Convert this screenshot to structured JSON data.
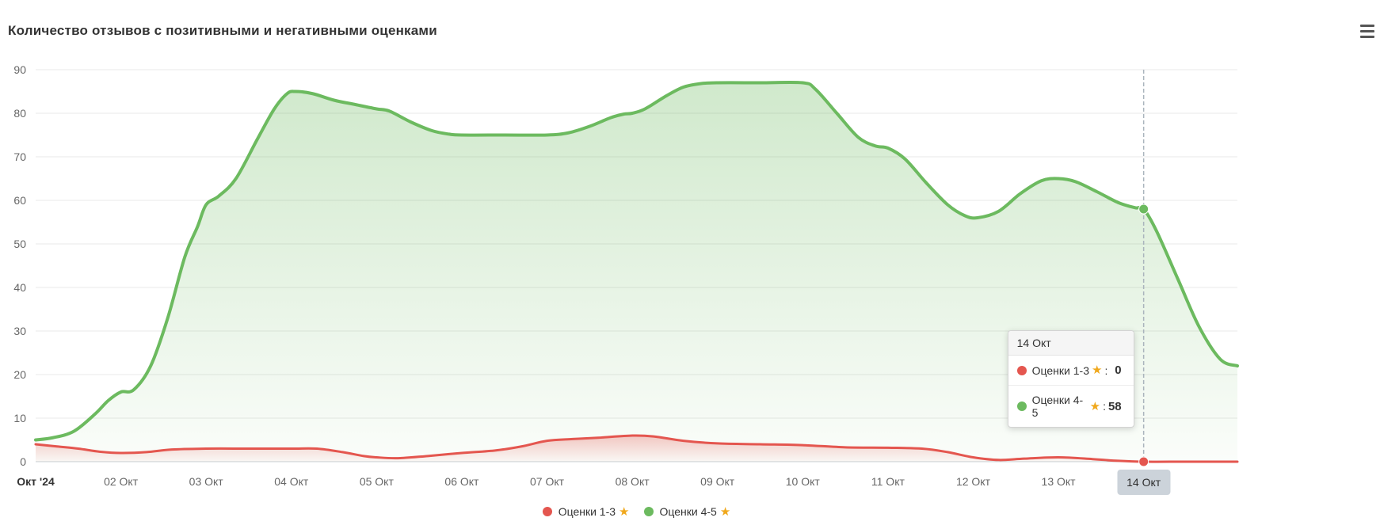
{
  "chart": {
    "title": "Количество отзывов с позитивными и негативными оценками"
  },
  "icons": {
    "star": "★"
  },
  "tooltip": {
    "header": "14 Окт",
    "rows": [
      {
        "label": "Оценки 1-3",
        "separator": ":",
        "value": "0",
        "color": "#e4564f"
      },
      {
        "label": "Оценки 4-5",
        "separator": ":",
        "value": "58",
        "color": "#6cba5f"
      }
    ]
  },
  "crosshair": {
    "label": "14 Окт"
  },
  "legend": {
    "items": [
      {
        "label": "Оценки 1-3",
        "color": "#e4564f"
      },
      {
        "label": "Оценки 4-5",
        "color": "#6cba5f"
      }
    ]
  },
  "chart_data": {
    "type": "area",
    "title": "Количество отзывов с позитивными и негативными оценками",
    "x_tick_labels": [
      "Окт '24",
      "02 Окт",
      "03 Окт",
      "04 Окт",
      "05 Окт",
      "06 Окт",
      "07 Окт",
      "08 Окт",
      "09 Окт",
      "10 Окт",
      "11 Окт",
      "12 Окт",
      "13 Окт",
      "14 Окт"
    ],
    "x_unit": "days since 01 Окт '24",
    "xlim": [
      0,
      14.1
    ],
    "ylim": [
      0,
      90
    ],
    "ytick_step": 10,
    "grid": "horizontal",
    "legend_position": "bottom-center",
    "series": [
      {
        "name": "Оценки 1-3",
        "slug": "negative",
        "color": "#e4564f",
        "line_width": 3,
        "points": [
          [
            0,
            4
          ],
          [
            0.25,
            3.5
          ],
          [
            0.5,
            3
          ],
          [
            0.75,
            2.3
          ],
          [
            1,
            2
          ],
          [
            1.3,
            2.2
          ],
          [
            1.6,
            2.8
          ],
          [
            2,
            3
          ],
          [
            2.5,
            3
          ],
          [
            3,
            3
          ],
          [
            3.3,
            3
          ],
          [
            3.6,
            2.2
          ],
          [
            3.85,
            1.3
          ],
          [
            4,
            1
          ],
          [
            4.25,
            0.8
          ],
          [
            4.6,
            1.3
          ],
          [
            5,
            2
          ],
          [
            5.4,
            2.6
          ],
          [
            5.7,
            3.5
          ],
          [
            6,
            4.8
          ],
          [
            6.3,
            5.2
          ],
          [
            6.6,
            5.5
          ],
          [
            7,
            6
          ],
          [
            7.25,
            5.8
          ],
          [
            7.6,
            4.8
          ],
          [
            8,
            4.2
          ],
          [
            8.5,
            4
          ],
          [
            9,
            3.8
          ],
          [
            9.5,
            3.3
          ],
          [
            10,
            3.2
          ],
          [
            10.4,
            3
          ],
          [
            10.7,
            2.2
          ],
          [
            11,
            1
          ],
          [
            11.3,
            0.4
          ],
          [
            11.6,
            0.7
          ],
          [
            12,
            1
          ],
          [
            12.4,
            0.6
          ],
          [
            12.7,
            0.2
          ],
          [
            13,
            0
          ],
          [
            13.5,
            0
          ],
          [
            14.1,
            0
          ]
        ]
      },
      {
        "name": "Оценки 4-5",
        "slug": "positive",
        "color": "#6cba5f",
        "line_width": 4,
        "points": [
          [
            0,
            5
          ],
          [
            0.2,
            5.5
          ],
          [
            0.45,
            7
          ],
          [
            0.7,
            11
          ],
          [
            0.85,
            14
          ],
          [
            1,
            16
          ],
          [
            1.15,
            16.5
          ],
          [
            1.35,
            22
          ],
          [
            1.55,
            33
          ],
          [
            1.75,
            47
          ],
          [
            1.9,
            54
          ],
          [
            2,
            59
          ],
          [
            2.15,
            61
          ],
          [
            2.35,
            65
          ],
          [
            2.6,
            74
          ],
          [
            2.8,
            81
          ],
          [
            2.95,
            84.5
          ],
          [
            3.05,
            85
          ],
          [
            3.25,
            84.5
          ],
          [
            3.5,
            83
          ],
          [
            3.75,
            82
          ],
          [
            4,
            81
          ],
          [
            4.15,
            80.5
          ],
          [
            4.4,
            78
          ],
          [
            4.65,
            76
          ],
          [
            4.85,
            75.2
          ],
          [
            5,
            75
          ],
          [
            5.5,
            75
          ],
          [
            6,
            75
          ],
          [
            6.25,
            75.5
          ],
          [
            6.5,
            77
          ],
          [
            6.75,
            79
          ],
          [
            6.9,
            79.8
          ],
          [
            7,
            80
          ],
          [
            7.15,
            81
          ],
          [
            7.4,
            84
          ],
          [
            7.6,
            86
          ],
          [
            7.8,
            86.8
          ],
          [
            8,
            87
          ],
          [
            8.5,
            87
          ],
          [
            9,
            87
          ],
          [
            9.15,
            85.5
          ],
          [
            9.4,
            80
          ],
          [
            9.65,
            74.5
          ],
          [
            9.85,
            72.5
          ],
          [
            10,
            72
          ],
          [
            10.2,
            69.5
          ],
          [
            10.45,
            64
          ],
          [
            10.7,
            59
          ],
          [
            10.9,
            56.5
          ],
          [
            11.05,
            56
          ],
          [
            11.3,
            57.5
          ],
          [
            11.55,
            61.5
          ],
          [
            11.8,
            64.5
          ],
          [
            12,
            65
          ],
          [
            12.2,
            64.3
          ],
          [
            12.45,
            62
          ],
          [
            12.7,
            59.5
          ],
          [
            12.9,
            58.3
          ],
          [
            13,
            58
          ],
          [
            13.15,
            53
          ],
          [
            13.4,
            42
          ],
          [
            13.65,
            31
          ],
          [
            13.9,
            23.5
          ],
          [
            14.1,
            22
          ]
        ]
      }
    ],
    "highlight": {
      "x": 13,
      "label": "14 Окт",
      "values": [
        0,
        58
      ]
    }
  }
}
